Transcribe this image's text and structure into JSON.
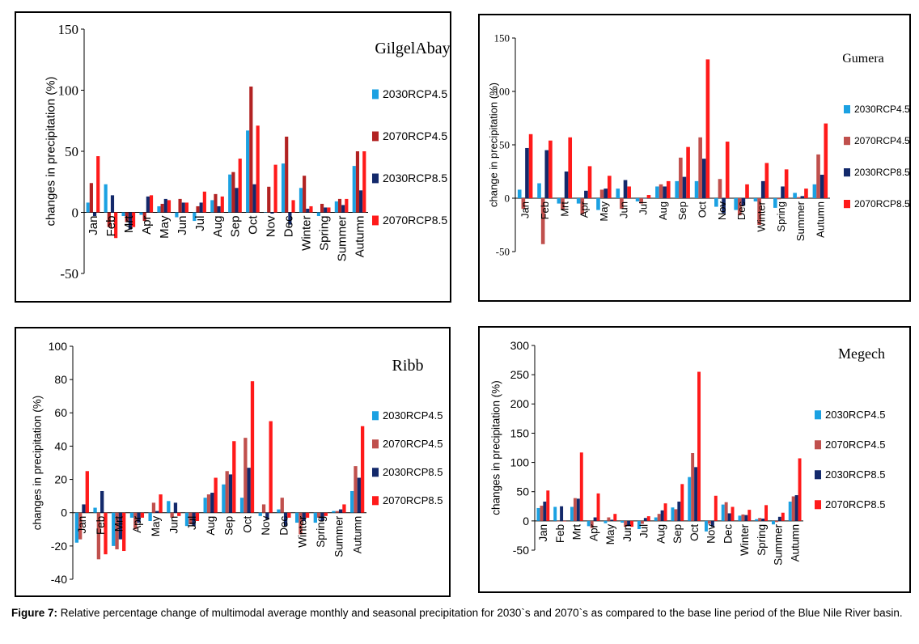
{
  "figure": {
    "caption_label": "Figure 7:",
    "caption_text": " Relative percentage change of multimodal average monthly and seasonal precipitation for 2030`s and 2070`s as compared to the base line period of the Blue Nile River basin."
  },
  "colors": {
    "s1": "#1BA1E2",
    "s2": "#B22222",
    "s2_alt": "#C0504D",
    "s3": "#13296B",
    "s4": "#FF1A1A"
  },
  "chart_data": [
    {
      "type": "bar",
      "title": "GilgelAbay",
      "ylabel": "changes in precipitation (%)",
      "ylim": [
        -50,
        150
      ],
      "yticks": [
        150,
        100,
        50,
        0,
        -50
      ],
      "categories": [
        "Jan",
        "Feb",
        "Mrt",
        "Apr",
        "May",
        "Jun",
        "Jul",
        "Aug",
        "Sep",
        "Oct",
        "Nov",
        "Dec",
        "Winter",
        "Spring",
        "Summer",
        "Autumn"
      ],
      "series": [
        {
          "name": "2030RCP4.5",
          "values": [
            8,
            23,
            -3,
            -2,
            5,
            -4,
            -7,
            10,
            31,
            67,
            0,
            40,
            20,
            -3,
            9,
            38
          ]
        },
        {
          "name": "2070RCP4.5",
          "values": [
            24,
            -12,
            -8,
            -7,
            7,
            11,
            5,
            15,
            33,
            103,
            21,
            62,
            30,
            7,
            11,
            50
          ]
        },
        {
          "name": "2030RCP8.5",
          "values": [
            -3,
            14,
            -14,
            13,
            11,
            8,
            8,
            5,
            20,
            23,
            -1,
            -10,
            3,
            4,
            6,
            18
          ]
        },
        {
          "name": "2070RCP8.5",
          "values": [
            46,
            -21,
            -12,
            14,
            10,
            8,
            17,
            13,
            44,
            71,
            39,
            10,
            5,
            4,
            11,
            50
          ]
        }
      ]
    },
    {
      "type": "bar",
      "title": "Gumera",
      "ylabel": "change in precipitation (%)",
      "ylim": [
        -50,
        150
      ],
      "yticks": [
        150,
        100,
        50,
        0,
        -50
      ],
      "categories": [
        "Jan",
        "Feb",
        "Mrt",
        "Apr",
        "May",
        "Jun",
        "Jul",
        "Aug",
        "Sep",
        "Oct",
        "Nov",
        "Dec",
        "Winter",
        "Spring",
        "Summer",
        "Autumn"
      ],
      "series": [
        {
          "name": "2030RCP4.5",
          "values": [
            8,
            14,
            -5,
            -5,
            -11,
            9,
            -3,
            11,
            16,
            16,
            -8,
            -11,
            -3,
            -9,
            5,
            13
          ]
        },
        {
          "name": "2070RCP4.5",
          "values": [
            -10,
            -43,
            -11,
            -15,
            8,
            -10,
            -5,
            13,
            38,
            57,
            18,
            -16,
            -25,
            -1,
            1,
            41
          ]
        },
        {
          "name": "2030RCP8.5",
          "values": [
            47,
            45,
            25,
            7,
            9,
            17,
            0,
            11,
            20,
            37,
            -14,
            -7,
            16,
            11,
            2,
            22
          ]
        },
        {
          "name": "2070RCP8.5",
          "values": [
            60,
            54,
            57,
            30,
            21,
            11,
            3,
            16,
            48,
            130,
            53,
            13,
            33,
            27,
            9,
            70
          ]
        }
      ]
    },
    {
      "type": "bar",
      "title": "Ribb",
      "ylabel": "changes in precipitation (%)",
      "ylim": [
        -40,
        100
      ],
      "yticks": [
        100,
        80,
        60,
        40,
        20,
        0,
        -20,
        -40
      ],
      "categories": [
        "Jan",
        "Feb",
        "Mrt",
        "Apr",
        "May",
        "Jun",
        "Jul",
        "Aug",
        "Sep",
        "Oct",
        "Nov",
        "Dec",
        "Winter",
        "Spring",
        "Summer",
        "Autumn"
      ],
      "series": [
        {
          "name": "2030RCP4.5",
          "values": [
            -18,
            3,
            -20,
            -3,
            -5,
            7,
            -8,
            9,
            17,
            9,
            -2,
            2,
            -6,
            -6,
            1,
            13
          ]
        },
        {
          "name": "2070RCP4.5",
          "values": [
            -16,
            -28,
            -22,
            -10,
            6,
            -3,
            -7,
            11,
            25,
            45,
            5,
            9,
            -13,
            -3,
            1,
            28
          ]
        },
        {
          "name": "2030RCP8.5",
          "values": [
            5,
            13,
            -16,
            -6,
            1,
            6,
            -8,
            12,
            23,
            27,
            -4,
            -8,
            -5,
            -5,
            2,
            21
          ]
        },
        {
          "name": "2070RCP8.5",
          "values": [
            25,
            -25,
            -23,
            -3,
            11,
            -2,
            -5,
            21,
            43,
            79,
            55,
            -3,
            -3,
            -2,
            5,
            52
          ]
        }
      ]
    },
    {
      "type": "bar",
      "title": "Megech",
      "ylabel": "changes in precipitation (%)",
      "ylim": [
        -50,
        300
      ],
      "yticks": [
        300,
        250,
        200,
        150,
        100,
        50,
        0,
        -50
      ],
      "categories": [
        "Jan",
        "Feb",
        "Mrt",
        "Apr",
        "May",
        "Jun",
        "Jul",
        "Aug",
        "Sep",
        "Oct",
        "Nov",
        "Dec",
        "Winter",
        "Spring",
        "Summer",
        "Autumn"
      ],
      "series": [
        {
          "name": "2030RCP4.5",
          "values": [
            22,
            24,
            24,
            -9,
            -4,
            -3,
            -14,
            6,
            23,
            75,
            -18,
            28,
            9,
            3,
            -6,
            33
          ]
        },
        {
          "name": "2070RCP4.5",
          "values": [
            26,
            0,
            39,
            -12,
            6,
            -10,
            -5,
            12,
            20,
            116,
            -5,
            32,
            11,
            5,
            -2,
            42
          ]
        },
        {
          "name": "2030RCP8.5",
          "values": [
            33,
            25,
            38,
            6,
            2,
            -9,
            5,
            18,
            33,
            92,
            -10,
            13,
            10,
            4,
            7,
            44
          ]
        },
        {
          "name": "2070RCP8.5",
          "values": [
            52,
            0,
            117,
            47,
            12,
            -10,
            8,
            30,
            63,
            255,
            43,
            24,
            19,
            27,
            14,
            107
          ]
        }
      ]
    }
  ]
}
